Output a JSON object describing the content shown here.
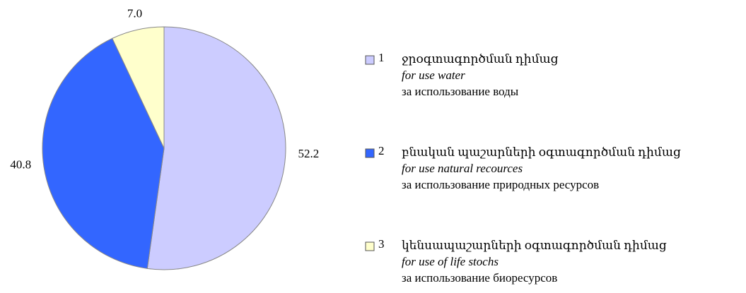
{
  "chart_data": {
    "type": "pie",
    "categories": [
      "1",
      "2",
      "3"
    ],
    "descriptions": [
      [
        "ջրօգտագործման դիմաց",
        "for use water",
        "за использование воды"
      ],
      [
        "բնական պաշարների օգտագործման դիմաց",
        "for use natural recources",
        "за использование природных ресурсов"
      ],
      [
        "կենսապաշարների օգտագործման դիմաց",
        "for use of life stochs",
        "за использование биоресурсов"
      ]
    ],
    "values": [
      52.2,
      40.8,
      7.0
    ],
    "value_labels": [
      "52.2",
      "40.8",
      "7.0"
    ],
    "colors": [
      "#ccccff",
      "#3366ff",
      "#ffffcc"
    ],
    "legend": "right"
  }
}
